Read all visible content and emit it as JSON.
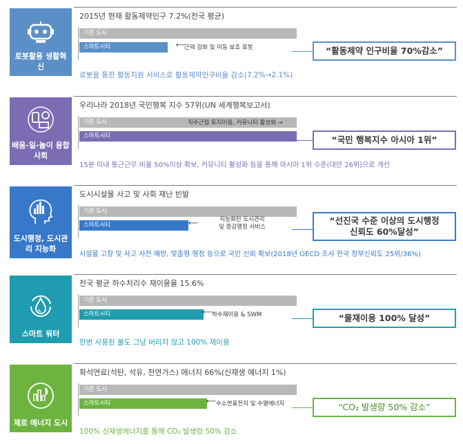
{
  "chart_data": [
    {
      "type": "bar",
      "title": "로봇활용 생활혁신",
      "headline": "2015년 현재 활동제약인구 7.2%(전국 평균)",
      "categories": [
        "기존 도시",
        "스마트시티"
      ],
      "note": "근력 강화 및 이동 보조 로봇",
      "goal": "“활동제약 인구비율 70%감소”",
      "footer": "로봇을 통한 활동지원 서비스로 활동제약인구비율 감소(7.2%→2.1%)",
      "color": "#5b8fc7"
    },
    {
      "type": "bar",
      "title": "배움-일-놀이 융합사회",
      "headline": "우리나라 2018년 국민행복 지수 57위(UN 세계행복보고서)",
      "categories": [
        "기존 도시",
        "스마트시티"
      ],
      "note": "직주근접 토지이용, 커뮤니티 활성화 →",
      "goal": "“국민 행복지수 아시아 1위”",
      "footer": "15분 이내 통근근무 비율 50%이상 확보, 커뮤니티 활성화 등을 통해 아시아 1위 수준(대만 26위)으로 개선",
      "color": "#7b6cb4"
    },
    {
      "type": "bar",
      "title": "도시행정, 도시관리 지능화",
      "headline": "도시시설물 사고 및 사회 재난 빈발",
      "categories": [
        "기존 도시",
        "스마트시티"
      ],
      "note": "지능화된 도시관리\n및 증강행정 서비스",
      "goal": "“선진국 수준 이상의 도시행정\n신뢰도 60%달성”",
      "footer": "시설물 고장 및 사고 사전 예방, 맞춤형 행정 등으로 국민 신뢰 확보(2018년 OECD 조사 한국 정부신뢰도 25위/36%)",
      "color": "#3878c8"
    },
    {
      "type": "bar",
      "title": "스마트 워터",
      "headline": "전국 평균 하수처리수 재이용율 15.6%",
      "categories": [
        "기존 도시",
        "스마트시티"
      ],
      "note": "하수재이용 & SWM",
      "goal": "“물재이용 100% 달성”",
      "footer": "한번 사용된 물도 그냥 버리지 않고 100% 재이용",
      "color": "#1f9cb0"
    },
    {
      "type": "bar",
      "title": "제로 에너지 도시",
      "headline": "화석연료(석탄, 석유, 천연가스) 에너지 66%(신재생 에너지 1%)",
      "categories": [
        "기존 도시",
        "스마트시티"
      ],
      "note": "수소연료전지 및 수열에너지",
      "goal": "“CO₂ 발생량 50% 감소”",
      "footer": "100% 신재생에너지를 통해 CO₂ 발생량 50% 감소",
      "color": "#6db33f"
    }
  ],
  "icons": [
    "robot-icon",
    "devices-icon",
    "head-city-icon",
    "water-drop-icon",
    "zero-energy-icon"
  ]
}
